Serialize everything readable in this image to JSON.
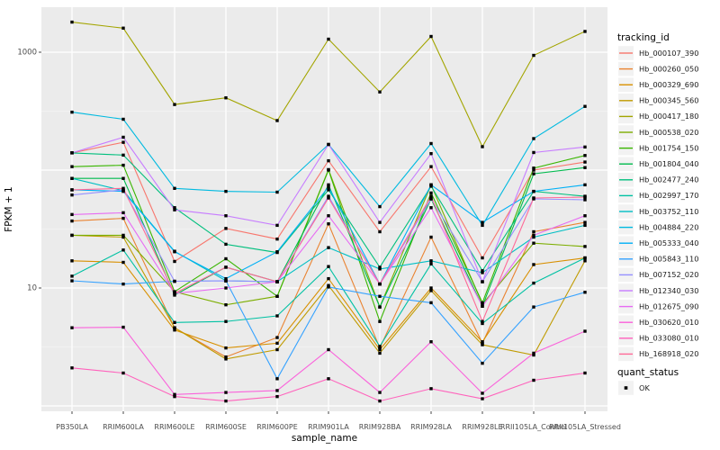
{
  "chart_data": {
    "type": "line",
    "title": "",
    "xlabel": "sample_name",
    "ylabel": "FPKM + 1",
    "y_scale": "log10",
    "grid": true,
    "panel_bg": "#EBEBEB",
    "grid_color": "#FFFFFF",
    "tick_label_color": "#4D4D4D",
    "axis_title_color": "#000000",
    "point_color": "#000000",
    "legend_key_bg": "#F2F2F2",
    "y_ticks": [
      {
        "label": "1000",
        "value": 1000
      },
      {
        "label": "10",
        "value": 10
      }
    ],
    "y_gridlines_major": [
      1,
      10,
      100,
      1000
    ],
    "y_gridlines_minor": [
      3.162,
      31.62,
      316.2
    ],
    "ylim": [
      1,
      2400
    ],
    "categories": [
      "PB350LA",
      "RRIM600LA",
      "RRIM600LE",
      "RRIM600SE",
      "RRIM600PE",
      "RRIM901LA",
      "RRIM928BA",
      "RRIM928LA",
      "RRIM928LE",
      "RRII105LA_Control",
      "RRII105LA_Stressed"
    ],
    "legend_position": "right",
    "legend": {
      "tracking_title": "tracking_id",
      "quant_title": "quant_status",
      "quant_items": [
        {
          "label": "OK",
          "marker": "black-square"
        }
      ]
    },
    "series": [
      {
        "name": "Hb_000107_390",
        "color": "#F8766D",
        "values": [
          140,
          172,
          16.8,
          32,
          26,
          120,
          30,
          107,
          18,
          100,
          117
        ]
      },
      {
        "name": "Hb_000260_050",
        "color": "#EA8331",
        "values": [
          37,
          39,
          4.6,
          2.6,
          3.8,
          35,
          3.1,
          27,
          3.4,
          30,
          36
        ]
      },
      {
        "name": "Hb_000329_690",
        "color": "#D89000",
        "values": [
          17,
          16.5,
          4.4,
          3.1,
          3.4,
          12,
          3.0,
          10,
          3.5,
          15.8,
          18
        ]
      },
      {
        "name": "Hb_000345_560",
        "color": "#C09B00",
        "values": [
          28,
          27,
          4.6,
          2.5,
          3.0,
          10.5,
          2.8,
          9.5,
          3.3,
          2.7,
          17
        ]
      },
      {
        "name": "Hb_000417_180",
        "color": "#A3A500",
        "values": [
          1800,
          1600,
          360,
          410,
          263,
          1290,
          460,
          1360,
          158,
          940,
          1500
        ]
      },
      {
        "name": "Hb_000538_020",
        "color": "#7CAE00",
        "values": [
          28,
          28,
          9.3,
          7.2,
          8.5,
          101,
          6.9,
          75,
          7.3,
          24,
          22.5
        ]
      },
      {
        "name": "Hb_001754_150",
        "color": "#39B600",
        "values": [
          107,
          110,
          9.3,
          17.7,
          8.5,
          100,
          5.2,
          64,
          7.5,
          104,
          133
        ]
      },
      {
        "name": "Hb_001804_040",
        "color": "#00BB4E",
        "values": [
          85,
          85,
          8.7,
          15,
          11.3,
          75,
          6.9,
          57,
          7.0,
          93,
          105
        ]
      },
      {
        "name": "Hb_002477_240",
        "color": "#00BF7D",
        "values": [
          140,
          134,
          48,
          23.5,
          20,
          68,
          15,
          73,
          14,
          66,
          60
        ]
      },
      {
        "name": "Hb_002997_170",
        "color": "#00C1A3",
        "values": [
          12.6,
          21,
          5.1,
          5.2,
          5.8,
          15.2,
          3.2,
          16,
          5.0,
          11,
          18
        ]
      },
      {
        "name": "Hb_003752_110",
        "color": "#00BFC4",
        "values": [
          85,
          67,
          20.5,
          11.5,
          11.3,
          22,
          14.5,
          17,
          13.5,
          27,
          34
        ]
      },
      {
        "name": "Hb_004884_220",
        "color": "#00BAE0",
        "values": [
          310,
          270,
          70,
          66,
          65,
          165,
          49,
          168,
          34,
          185,
          347
        ]
      },
      {
        "name": "Hb_005333_040",
        "color": "#00B0F6",
        "values": [
          68,
          66,
          20.3,
          12,
          20.3,
          72,
          10.8,
          75,
          36,
          66,
          75
        ]
      },
      {
        "name": "Hb_005843_110",
        "color": "#35A2FF",
        "values": [
          11.5,
          10.8,
          11.4,
          11.5,
          1.7,
          10.2,
          8.5,
          7.5,
          2.3,
          6.9,
          9.2
        ]
      },
      {
        "name": "Hb_007152_020",
        "color": "#9590FF",
        "values": [
          61.5,
          68,
          11.4,
          11.5,
          11.3,
          60,
          10.8,
          57,
          11.3,
          57,
          56
        ]
      },
      {
        "name": "Hb_012340_030",
        "color": "#C77CFF",
        "values": [
          140,
          190,
          46,
          41,
          34,
          165,
          36,
          138,
          11.3,
          141,
          157
        ]
      },
      {
        "name": "Hb_012675_090",
        "color": "#E76BF3",
        "values": [
          42,
          43.5,
          9.0,
          10,
          11.3,
          41,
          10.8,
          48,
          7.0,
          28,
          41
        ]
      },
      {
        "name": "Hb_030620_010",
        "color": "#FA62DB",
        "values": [
          4.6,
          4.65,
          1.25,
          1.3,
          1.35,
          3.0,
          1.3,
          3.5,
          1.28,
          2.8,
          4.3
        ]
      },
      {
        "name": "Hb_033080_010",
        "color": "#FF62BC",
        "values": [
          2.1,
          1.9,
          1.2,
          1.1,
          1.2,
          1.7,
          1.1,
          1.4,
          1.15,
          1.65,
          1.9
        ]
      },
      {
        "name": "Hb_168918_020",
        "color": "#FF6A98",
        "values": [
          68,
          70,
          9.0,
          15,
          11.3,
          58,
          10.8,
          60,
          5.2,
          58,
          59
        ]
      }
    ]
  }
}
